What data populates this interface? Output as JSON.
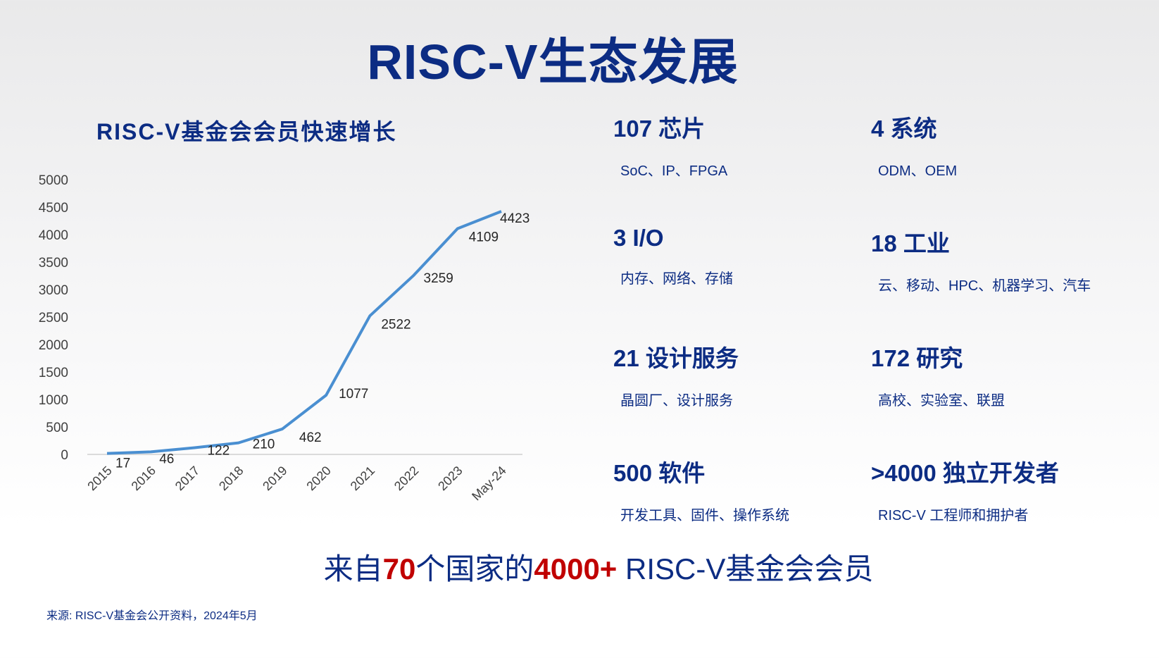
{
  "title": "RISC-V生态发展",
  "chart_data": {
    "type": "line",
    "title": "RISC-V基金会会员快速增长",
    "categories": [
      "2015",
      "2016",
      "2017",
      "2018",
      "2019",
      "2020",
      "2021",
      "2022",
      "2023",
      "May-24"
    ],
    "values": [
      17,
      46,
      122,
      210,
      462,
      1077,
      2522,
      3259,
      4109,
      4423
    ],
    "data_labels": [
      "17",
      "46",
      "122",
      "210",
      "462",
      "1077",
      "2522",
      "3259",
      "4109",
      "4423"
    ],
    "ylim": [
      0,
      5000
    ],
    "yticks": [
      "0",
      "500",
      "1000",
      "1500",
      "2000",
      "2500",
      "3000",
      "3500",
      "4000",
      "4500",
      "5000"
    ],
    "grid": false,
    "legend": "none",
    "line_color": "#4a8fd1"
  },
  "stats": [
    {
      "head": "107 芯片",
      "sub": "SoC、IP、FPGA"
    },
    {
      "head": "4 系统",
      "sub": "ODM、OEM"
    },
    {
      "head": "3 I/O",
      "sub": "内存、网络、存储"
    },
    {
      "head": "18 工业",
      "sub": "云、移动、HPC、机器学习、汽车"
    },
    {
      "head": "21 设计服务",
      "sub": "晶圆厂、设计服务"
    },
    {
      "head": "172 研究",
      "sub": "高校、实验室、联盟"
    },
    {
      "head": "500 软件",
      "sub": "开发工具、固件、操作系统"
    },
    {
      "head": ">4000 独立开发者",
      "sub": "RISC-V 工程师和拥护者"
    }
  ],
  "bottom": {
    "p1": "来自",
    "n1": "70",
    "p2": "个国家的",
    "n2": "4000+",
    "p3": " RISC-V基金会会员"
  },
  "source": "来源: RISC-V基金会公开资料，2024年5月",
  "colors": {
    "navy": "#0c2c83",
    "red": "#c00000"
  }
}
